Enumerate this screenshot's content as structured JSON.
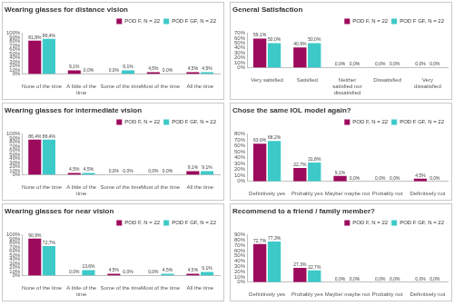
{
  "chart_data": [
    {
      "type": "bar",
      "title": "Wearing glasses for distance vision",
      "categories": [
        "None of the time",
        "A little of the time",
        "Some of the time",
        "Most of the time",
        "All the time"
      ],
      "series": [
        {
          "name": "POD F, N = 22",
          "color": "#9c0a5c",
          "values": [
            81.8,
            9.1,
            0.0,
            4.5,
            4.5
          ],
          "value_labels": [
            "81,8%",
            "9,1%",
            "0,0%",
            "4,5%",
            "4,5%"
          ]
        },
        {
          "name": "POD F GF, N = 22",
          "color": "#3ec9c9",
          "values": [
            86.4,
            0.0,
            9.1,
            0.0,
            4.5
          ],
          "value_labels": [
            "86,4%",
            "0,0%",
            "9,1%",
            "0,0%",
            "4,5%"
          ]
        }
      ],
      "ylim": [
        0,
        100
      ],
      "yticks": [
        {
          "value": 0,
          "label": "0%"
        },
        {
          "value": 10,
          "label": "10%"
        },
        {
          "value": 20,
          "label": "20%"
        },
        {
          "value": 30,
          "label": "30%"
        },
        {
          "value": 40,
          "label": "40%"
        },
        {
          "value": 50,
          "label": "50%"
        },
        {
          "value": 60,
          "label": "60%"
        },
        {
          "value": 70,
          "label": "70%"
        },
        {
          "value": 80,
          "label": "80%"
        },
        {
          "value": 90,
          "label": "90%"
        },
        {
          "value": 100,
          "label": "100%"
        }
      ],
      "grid": false,
      "legend": "top-right",
      "data_labels": true
    },
    {
      "type": "bar",
      "title": "General Satisfaction",
      "categories": [
        "Very satisfied",
        "Satisfied",
        "Neither satisfied nor dissatisfied",
        "Dissatisfied",
        "Very dissatisfied"
      ],
      "series": [
        {
          "name": "POD F, N = 22",
          "color": "#9c0a5c",
          "values": [
            59.1,
            40.9,
            0.0,
            0.0,
            0.0
          ],
          "value_labels": [
            "59,1%",
            "40,9%",
            "0,0%",
            "0,0%",
            "0,0%"
          ]
        },
        {
          "name": "POD F GF, N = 22",
          "color": "#3ec9c9",
          "values": [
            50.0,
            50.0,
            0.0,
            0.0,
            0.0
          ],
          "value_labels": [
            "50,0%",
            "50,0%",
            "0,0%",
            "0,0%",
            "0,0%"
          ]
        }
      ],
      "ylim": [
        0,
        70
      ],
      "yticks": [
        {
          "value": 0,
          "label": "0%"
        },
        {
          "value": 10,
          "label": "10%"
        },
        {
          "value": 20,
          "label": "20%"
        },
        {
          "value": 30,
          "label": "30%"
        },
        {
          "value": 40,
          "label": "40%"
        },
        {
          "value": 50,
          "label": "50%"
        },
        {
          "value": 60,
          "label": "60%"
        },
        {
          "value": 70,
          "label": "70%"
        }
      ],
      "grid": false,
      "legend": "top-right",
      "data_labels": true
    },
    {
      "type": "bar",
      "title": "Wearing glasses for intermediate vision",
      "categories": [
        "None of the time",
        "A little of the time",
        "Some of the time",
        "Most of the time",
        "All the time"
      ],
      "series": [
        {
          "name": "POD F, N = 22",
          "color": "#9c0a5c",
          "values": [
            86.4,
            4.5,
            0.0,
            0.0,
            9.1
          ],
          "value_labels": [
            "86,4%",
            "4,5%",
            "0,0%",
            "0,0%",
            "9,1%"
          ]
        },
        {
          "name": "POD F GF, N = 22",
          "color": "#3ec9c9",
          "values": [
            86.4,
            4.5,
            0.0,
            0.0,
            9.1
          ],
          "value_labels": [
            "86,4%",
            "4,5%",
            "0,0%",
            "0,0%",
            "9,1%"
          ]
        }
      ],
      "ylim": [
        0,
        100
      ],
      "yticks": [
        {
          "value": 0,
          "label": "0%"
        },
        {
          "value": 10,
          "label": "10%"
        },
        {
          "value": 20,
          "label": "20%"
        },
        {
          "value": 30,
          "label": "30%"
        },
        {
          "value": 40,
          "label": "40%"
        },
        {
          "value": 50,
          "label": "50%"
        },
        {
          "value": 60,
          "label": "60%"
        },
        {
          "value": 70,
          "label": "70%"
        },
        {
          "value": 80,
          "label": "80%"
        },
        {
          "value": 90,
          "label": "90%"
        },
        {
          "value": 100,
          "label": "100%"
        }
      ],
      "grid": false,
      "legend": "top-right",
      "data_labels": true
    },
    {
      "type": "bar",
      "title": "Chose the same IOL model again?",
      "categories": [
        "Definitively yes",
        "Probably yes",
        "Maybe/ maybe not",
        "Probably not",
        "Definitively not"
      ],
      "series": [
        {
          "name": "POD F, N = 22",
          "color": "#9c0a5c",
          "values": [
            63.6,
            22.7,
            9.1,
            0.0,
            4.5
          ],
          "value_labels": [
            "63,6%",
            "22,7%",
            "9,1%",
            "0,0%",
            "4,5%"
          ]
        },
        {
          "name": "POD F GF, N = 22",
          "color": "#3ec9c9",
          "values": [
            68.2,
            31.8,
            0.0,
            0.0,
            0.0
          ],
          "value_labels": [
            "68,2%",
            "31,8%",
            "0,0%",
            "0,0%",
            "0,0%"
          ]
        }
      ],
      "ylim": [
        0,
        80
      ],
      "yticks": [
        {
          "value": 0,
          "label": "0%"
        },
        {
          "value": 10,
          "label": "10%"
        },
        {
          "value": 20,
          "label": "20%"
        },
        {
          "value": 30,
          "label": "30%"
        },
        {
          "value": 40,
          "label": "40%"
        },
        {
          "value": 50,
          "label": "50%"
        },
        {
          "value": 60,
          "label": "60%"
        },
        {
          "value": 70,
          "label": "70%"
        },
        {
          "value": 80,
          "label": "80%"
        }
      ],
      "grid": false,
      "legend": "top-right",
      "data_labels": true
    },
    {
      "type": "bar",
      "title": "Wearing glasses for near vision",
      "categories": [
        "None of the time",
        "A little of the time",
        "Some of the time",
        "Most of the time",
        "All the time"
      ],
      "series": [
        {
          "name": "POD F, N = 22",
          "color": "#9c0a5c",
          "values": [
            90.9,
            0.0,
            4.5,
            0.0,
            4.5
          ],
          "value_labels": [
            "90,9%",
            "0,0%",
            "4,5%",
            "0,0%",
            "4,5%"
          ]
        },
        {
          "name": "POD F GF, N = 22",
          "color": "#3ec9c9",
          "values": [
            72.7,
            13.6,
            0.0,
            4.5,
            9.1
          ],
          "value_labels": [
            "72,7%",
            "13,6%",
            "0,0%",
            "4,5%",
            "9,1%"
          ]
        }
      ],
      "ylim": [
        0,
        100
      ],
      "yticks": [
        {
          "value": 0,
          "label": "0%"
        },
        {
          "value": 10,
          "label": "10%"
        },
        {
          "value": 20,
          "label": "20%"
        },
        {
          "value": 30,
          "label": "30%"
        },
        {
          "value": 40,
          "label": "40%"
        },
        {
          "value": 50,
          "label": "50%"
        },
        {
          "value": 60,
          "label": "60%"
        },
        {
          "value": 70,
          "label": "70%"
        },
        {
          "value": 80,
          "label": "80%"
        },
        {
          "value": 90,
          "label": "90%"
        },
        {
          "value": 100,
          "label": "100%"
        }
      ],
      "grid": false,
      "legend": "top-right",
      "data_labels": true
    },
    {
      "type": "bar",
      "title": "Recommend to a friend / family member?",
      "categories": [
        "Definitively yes",
        "Probably yes",
        "Maybe/ maybe not",
        "Probably not",
        "Definitively not"
      ],
      "series": [
        {
          "name": "POD F, N = 22",
          "color": "#9c0a5c",
          "values": [
            72.7,
            27.3,
            0.0,
            0.0,
            0.0
          ],
          "value_labels": [
            "72,7%",
            "27,3%",
            "0,0%",
            "0,0%",
            "0,0%"
          ]
        },
        {
          "name": "POD F GF, N = 22",
          "color": "#3ec9c9",
          "values": [
            77.3,
            22.7,
            0.0,
            0.0,
            0.0
          ],
          "value_labels": [
            "77,3%",
            "22,7%",
            "0,0%",
            "0,0%",
            "0,0%"
          ]
        }
      ],
      "ylim": [
        0,
        90
      ],
      "yticks": [
        {
          "value": 0,
          "label": "0%"
        },
        {
          "value": 10,
          "label": "10%"
        },
        {
          "value": 20,
          "label": "20%"
        },
        {
          "value": 30,
          "label": "30%"
        },
        {
          "value": 40,
          "label": "40%"
        },
        {
          "value": 50,
          "label": "50%"
        },
        {
          "value": 60,
          "label": "60%"
        },
        {
          "value": 70,
          "label": "70%"
        },
        {
          "value": 80,
          "label": "80%"
        },
        {
          "value": 90,
          "label": "90%"
        }
      ],
      "grid": false,
      "legend": "top-right",
      "data_labels": true
    }
  ]
}
